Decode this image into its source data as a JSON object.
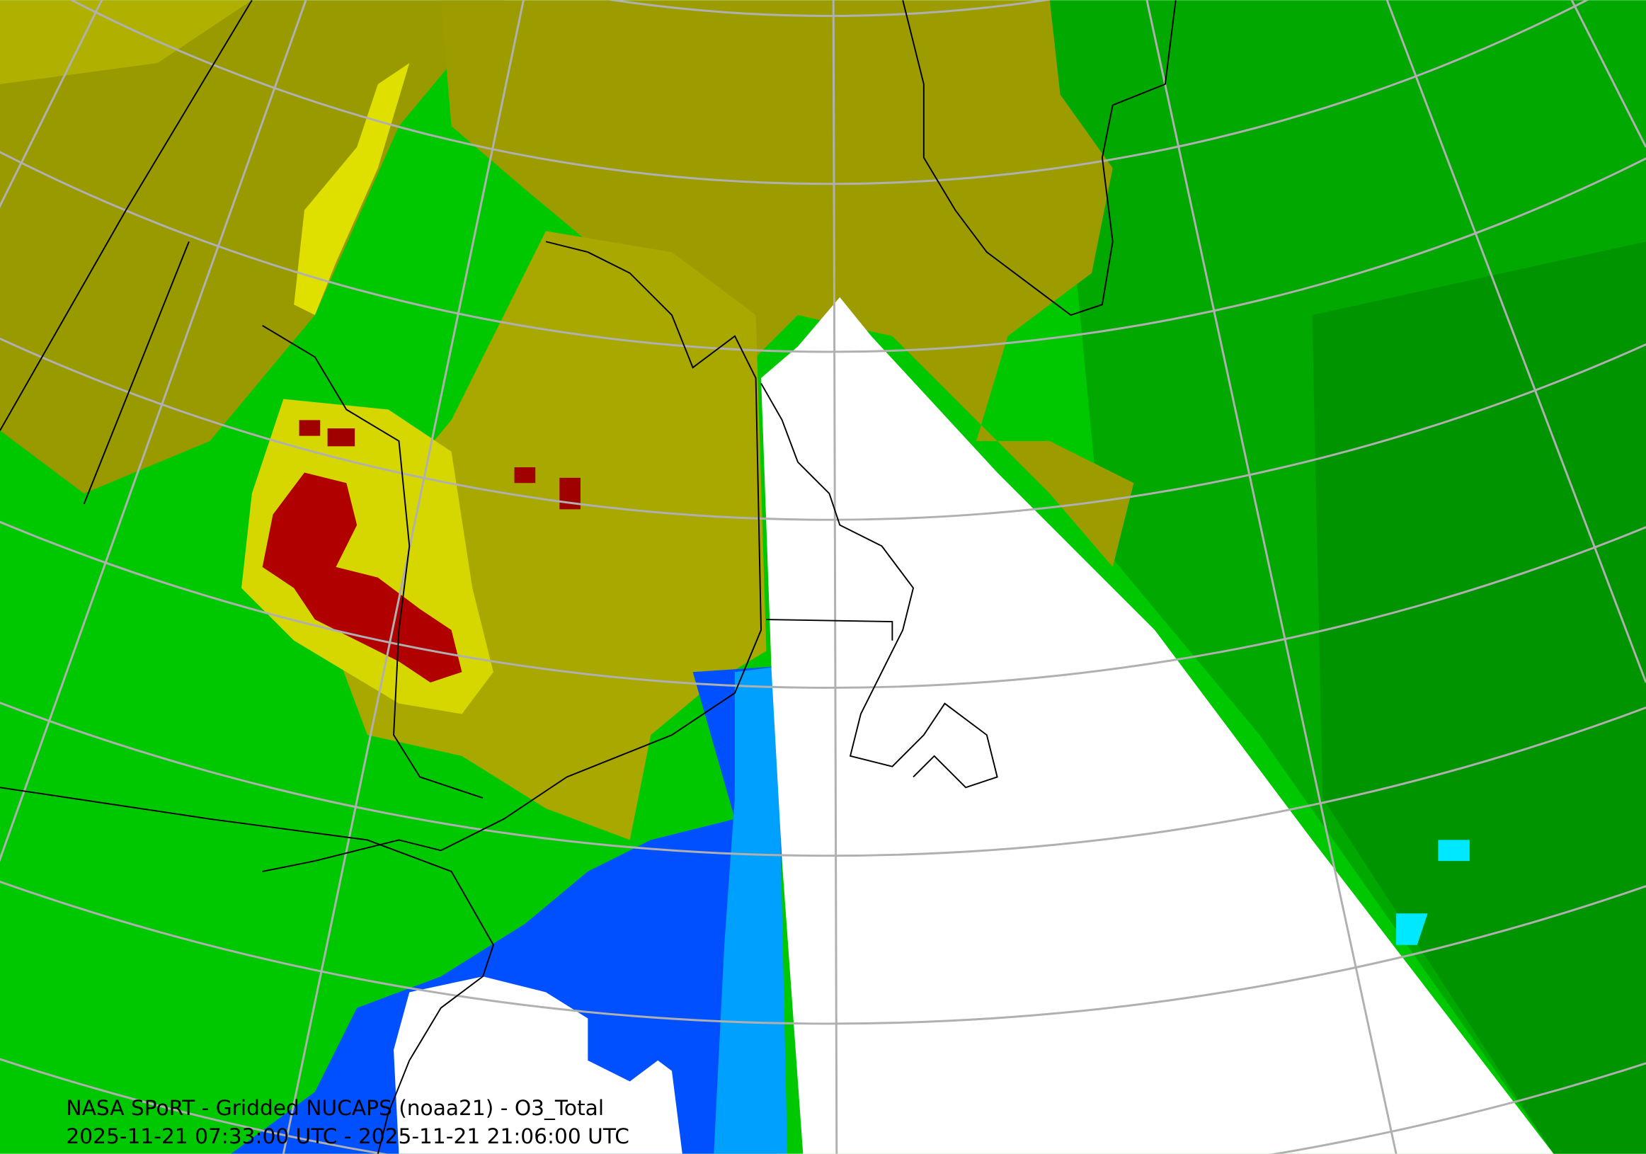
{
  "caption": {
    "line1": "NASA SPoRT - Gridded NUCAPS (noaa21) - O3_Total",
    "line2": "2025-11-21 07:33:00 UTC - 2025-11-21 21:06:00 UTC"
  }
}
